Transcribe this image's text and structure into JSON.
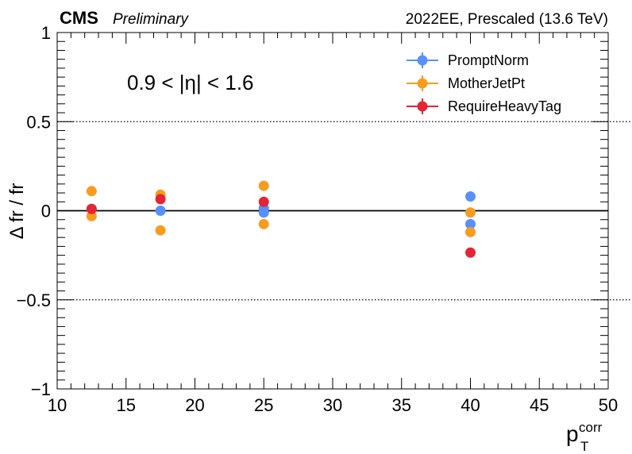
{
  "header": {
    "cms": "CMS",
    "preliminary": "Preliminary",
    "run_info": "2022EE, Prescaled (13.6 TeV)"
  },
  "chart_data": {
    "type": "scatter",
    "annotation": "0.9 < |η| < 1.6",
    "ylabel": "Δ fr / fr",
    "xlabel_main": "p",
    "xlabel_sub": "T",
    "xlabel_sup": "corr",
    "xlim": [
      10,
      50
    ],
    "ylim": [
      -1,
      1
    ],
    "x_ticks": [
      10,
      15,
      20,
      25,
      30,
      35,
      40,
      45,
      50
    ],
    "y_ticks": [
      {
        "value": 1,
        "label": "1"
      },
      {
        "value": 0.5,
        "label": "0.5"
      },
      {
        "value": 0,
        "label": "0"
      },
      {
        "value": -0.5,
        "label": "−0.5"
      },
      {
        "value": -1,
        "label": "−1"
      }
    ],
    "reference_lines": [
      {
        "y": 0.5,
        "style": "dotted"
      },
      {
        "y": 0,
        "style": "solid"
      },
      {
        "y": -0.5,
        "style": "dotted"
      }
    ],
    "legend_position": "top-right",
    "series": [
      {
        "name": "PromptNorm",
        "color": "#5790fc",
        "points": [
          {
            "x": 12.5,
            "y": 0.01
          },
          {
            "x": 17.5,
            "y": 0.0
          },
          {
            "x": 25,
            "y": 0.015
          },
          {
            "x": 25,
            "y": -0.01
          },
          {
            "x": 40,
            "y": 0.08
          },
          {
            "x": 40,
            "y": -0.075
          }
        ]
      },
      {
        "name": "MotherJetPt",
        "color": "#f89c20",
        "points": [
          {
            "x": 12.5,
            "y": 0.11
          },
          {
            "x": 12.5,
            "y": -0.03
          },
          {
            "x": 17.5,
            "y": 0.09
          },
          {
            "x": 17.5,
            "y": -0.11
          },
          {
            "x": 25,
            "y": 0.14
          },
          {
            "x": 25,
            "y": -0.075
          },
          {
            "x": 40,
            "y": -0.01
          },
          {
            "x": 40,
            "y": -0.12
          }
        ]
      },
      {
        "name": "RequireHeavyTag",
        "color": "#e42536",
        "points": [
          {
            "x": 12.5,
            "y": 0.01
          },
          {
            "x": 17.5,
            "y": 0.065
          },
          {
            "x": 25,
            "y": 0.05
          },
          {
            "x": 40,
            "y": -0.235
          }
        ]
      }
    ]
  }
}
